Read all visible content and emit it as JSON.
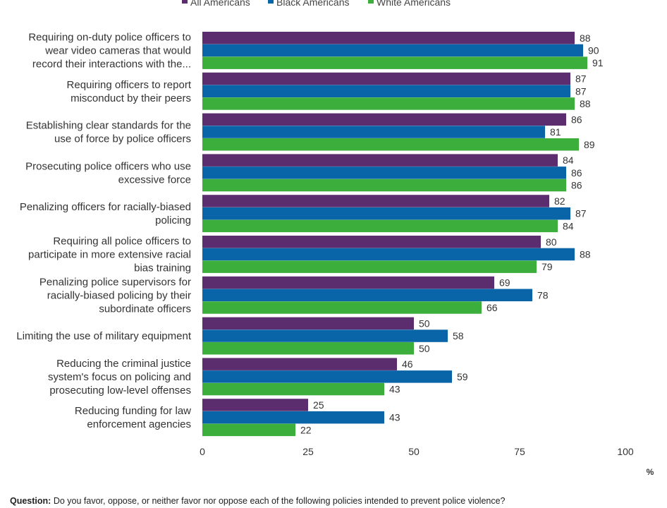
{
  "chart_data": {
    "type": "bar",
    "orientation": "horizontal",
    "categories": [
      "Requiring on-duty police officers to wear video cameras that would record their interactions with the...",
      "Requiring officers to report misconduct by their peers",
      "Establishing clear standards for the use of force by police officers",
      "Prosecuting police officers who use excessive force",
      "Penalizing officers for racially-biased policing",
      "Requiring all police officers to participate in more extensive racial bias training",
      "Penalizing police supervisors for racially-biased policing by their subordinate officers",
      "Limiting the use of military equipment",
      "Reducing the criminal justice system's focus on policing and prosecuting low-level offenses",
      "Reducing funding for law enforcement agencies"
    ],
    "category_lines": [
      [
        "Requiring on-duty police officers to",
        "wear video cameras that would",
        "record their interactions with the..."
      ],
      [
        "Requiring officers to report",
        "misconduct by their peers"
      ],
      [
        "Establishing clear standards for the",
        "use of force by police officers"
      ],
      [
        "Prosecuting police officers who use",
        "excessive force"
      ],
      [
        "Penalizing officers for racially-biased",
        "policing"
      ],
      [
        "Requiring all police officers to",
        "participate in more extensive racial",
        "bias training"
      ],
      [
        "Penalizing police supervisors for",
        "racially-biased policing by their",
        "subordinate officers"
      ],
      [
        "Limiting the use of military equipment"
      ],
      [
        "Reducing the criminal justice",
        "system's focus on policing and",
        "prosecuting low-level offenses"
      ],
      [
        "Reducing funding for law",
        "enforcement agencies"
      ]
    ],
    "series": [
      {
        "name": "All Americans",
        "color": "#5c2d6e",
        "values": [
          88,
          87,
          86,
          84,
          82,
          80,
          69,
          50,
          46,
          25
        ]
      },
      {
        "name": "Black Americans",
        "color": "#0a64a8",
        "values": [
          90,
          87,
          81,
          86,
          87,
          88,
          78,
          58,
          59,
          43
        ]
      },
      {
        "name": "White Americans",
        "color": "#3cae3c",
        "values": [
          91,
          88,
          89,
          86,
          84,
          79,
          66,
          50,
          43,
          22
        ]
      }
    ],
    "xlim": [
      0,
      100
    ],
    "xticks": [
      0,
      25,
      50,
      75,
      100
    ],
    "unit_label": "%",
    "legend_position": "top",
    "grid": false
  },
  "footnote": {
    "label": "Question:",
    "text": " Do you favor, oppose, or neither favor nor oppose each of the following policies  intended to prevent police violence?"
  }
}
